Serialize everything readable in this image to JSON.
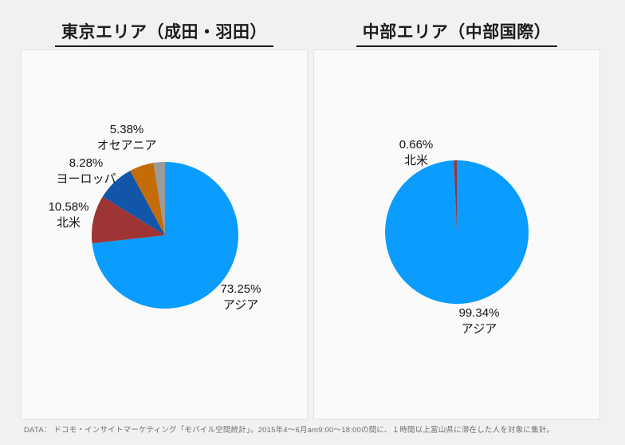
{
  "footer": {
    "text": "DATA： ドコモ・インサイトマーケティング「モバイル空間統計」。2015年4～6月am9:00～18:00の間に、１時間以上富山県に滞在した人を対象に集計。"
  },
  "colors": {
    "asia": "#0a9cff",
    "north_america": "#9e3434",
    "europe": "#1156a8",
    "oceania": "#c56c0a",
    "other": "#9b9b9b",
    "background": "#f1f1f0",
    "panel": "#fafafa",
    "panel_border": "#e4e4e4",
    "title_text": "#1c1c1c"
  },
  "chart_data": [
    {
      "type": "pie",
      "title": "東京エリア（成田・羽田）",
      "start_angle_deg": 0,
      "direction": "clockwise",
      "legend": "none",
      "slices": [
        {
          "label": "アジア",
          "value": 73.25,
          "display": "73.25%",
          "color": "#0a9cff"
        },
        {
          "label": "北米",
          "value": 10.58,
          "display": "10.58%",
          "color": "#9e3434"
        },
        {
          "label": "ヨーロッパ",
          "value": 8.28,
          "display": "8.28%",
          "color": "#1156a8"
        },
        {
          "label": "オセアニア",
          "value": 5.38,
          "display": "5.38%",
          "color": "#c56c0a"
        },
        {
          "label": "",
          "value": 2.51,
          "display": "",
          "color": "#9b9b9b"
        }
      ]
    },
    {
      "type": "pie",
      "title": "中部エリア（中部国際）",
      "start_angle_deg": 0,
      "direction": "clockwise",
      "legend": "none",
      "slices": [
        {
          "label": "アジア",
          "value": 99.34,
          "display": "99.34%",
          "color": "#0a9cff"
        },
        {
          "label": "北米",
          "value": 0.66,
          "display": "0.66%",
          "color": "#9e3434"
        }
      ]
    }
  ]
}
